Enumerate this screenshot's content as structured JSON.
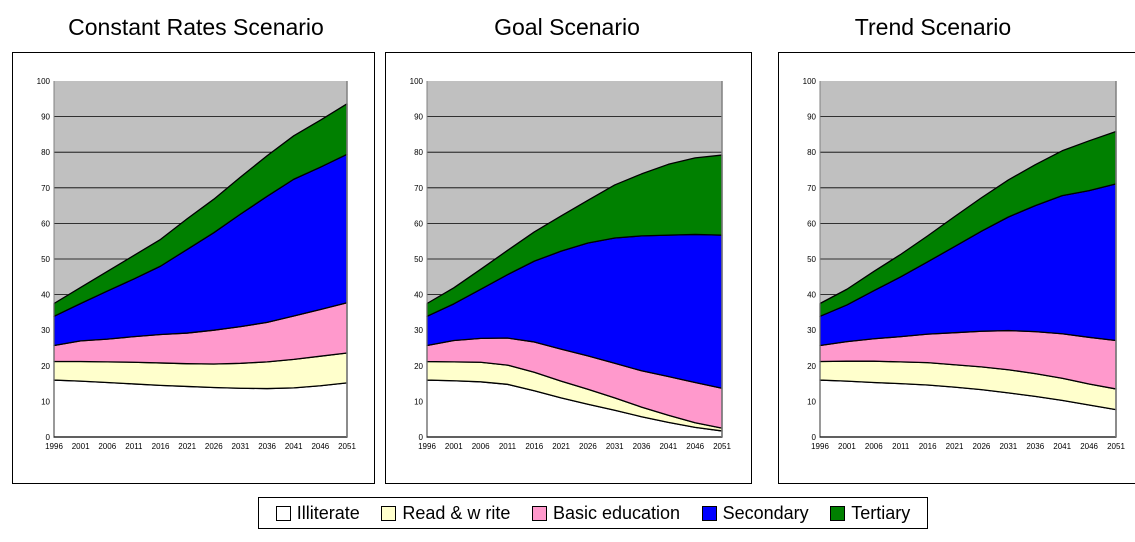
{
  "chart_data": [
    {
      "type": "area",
      "stacked": true,
      "title": "Constant Rates Scenario",
      "x": [
        1996,
        2001,
        2006,
        2011,
        2016,
        2021,
        2026,
        2031,
        2036,
        2041,
        2046,
        2051
      ],
      "ylim": [
        0,
        100
      ],
      "yticks": [
        0,
        10,
        20,
        30,
        40,
        50,
        60,
        70,
        80,
        90,
        100
      ],
      "grid": true,
      "series": [
        {
          "name": "Illiterate",
          "values": [
            16,
            15.7,
            15.3,
            14.9,
            14.5,
            14.2,
            13.9,
            13.7,
            13.6,
            13.8,
            14.4,
            15.2
          ]
        },
        {
          "name": "Read & w rite",
          "values": [
            5.2,
            5.5,
            5.8,
            6.1,
            6.3,
            6.4,
            6.6,
            7.0,
            7.5,
            8.0,
            8.3,
            8.4
          ]
        },
        {
          "name": "Basic education",
          "values": [
            4.5,
            5.8,
            6.4,
            7.2,
            8.0,
            8.6,
            9.5,
            10.3,
            11.1,
            12.2,
            13.1,
            14.1
          ]
        },
        {
          "name": "Secondary",
          "values": [
            8.2,
            10.5,
            13.5,
            16.2,
            19.2,
            23.5,
            27.4,
            31.6,
            35.4,
            38.4,
            40.0,
            41.7
          ]
        },
        {
          "name": "Tertiary",
          "values": [
            3.6,
            4.5,
            5.5,
            6.6,
            7.5,
            8.6,
            9.4,
            10.4,
            11.4,
            12.2,
            13.2,
            14.2
          ]
        }
      ]
    },
    {
      "type": "area",
      "stacked": true,
      "title": "Goal Scenario",
      "x": [
        1996,
        2001,
        2006,
        2011,
        2016,
        2021,
        2026,
        2031,
        2036,
        2041,
        2046,
        2051
      ],
      "ylim": [
        0,
        100
      ],
      "yticks": [
        0,
        10,
        20,
        30,
        40,
        50,
        60,
        70,
        80,
        90,
        100
      ],
      "grid": true,
      "series": [
        {
          "name": "Illiterate",
          "values": [
            16,
            15.8,
            15.5,
            14.8,
            13.0,
            11.0,
            9.2,
            7.5,
            5.7,
            4.1,
            2.7,
            1.7
          ]
        },
        {
          "name": "Read & w rite",
          "values": [
            5.2,
            5.3,
            5.5,
            5.4,
            5.2,
            4.7,
            4.2,
            3.5,
            2.7,
            2.0,
            1.3,
            0.8
          ]
        },
        {
          "name": "Basic education",
          "values": [
            4.5,
            6.0,
            6.7,
            7.6,
            8.5,
            9.0,
            9.4,
            9.7,
            10.2,
            10.9,
            11.3,
            11.2
          ]
        },
        {
          "name": "Secondary",
          "values": [
            8.2,
            10.3,
            13.8,
            17.8,
            22.7,
            27.5,
            31.7,
            35.2,
            37.9,
            39.7,
            41.6,
            43.0
          ]
        },
        {
          "name": "Tertiary",
          "values": [
            3.6,
            4.5,
            5.6,
            6.8,
            8.2,
            9.9,
            12.0,
            14.9,
            17.4,
            19.9,
            21.5,
            22.5
          ]
        }
      ]
    },
    {
      "type": "area",
      "stacked": true,
      "title": "Trend Scenario",
      "x": [
        1996,
        2001,
        2006,
        2011,
        2016,
        2021,
        2026,
        2031,
        2036,
        2041,
        2046,
        2051
      ],
      "ylim": [
        0,
        100
      ],
      "yticks": [
        0,
        10,
        20,
        30,
        40,
        50,
        60,
        70,
        80,
        90,
        100
      ],
      "grid": true,
      "series": [
        {
          "name": "Illiterate",
          "values": [
            16,
            15.7,
            15.3,
            15.0,
            14.6,
            14.0,
            13.3,
            12.4,
            11.4,
            10.3,
            9.0,
            7.7
          ]
        },
        {
          "name": "Read & w rite",
          "values": [
            5.2,
            5.6,
            6.0,
            6.1,
            6.3,
            6.3,
            6.4,
            6.5,
            6.4,
            6.2,
            5.9,
            5.8
          ]
        },
        {
          "name": "Basic education",
          "values": [
            4.5,
            5.5,
            6.3,
            7.1,
            8.0,
            9.0,
            10.0,
            11.0,
            11.8,
            12.5,
            13.1,
            13.6
          ]
        },
        {
          "name": "Secondary",
          "values": [
            8.2,
            10.3,
            13.5,
            16.8,
            20.3,
            24.2,
            28.1,
            31.9,
            35.4,
            38.8,
            41.2,
            44.0
          ]
        },
        {
          "name": "Tertiary",
          "values": [
            3.6,
            4.4,
            5.4,
            6.3,
            7.3,
            8.4,
            9.4,
            10.4,
            11.5,
            12.6,
            14.0,
            14.7
          ]
        }
      ]
    }
  ],
  "colors": {
    "Illiterate": "#ffffff",
    "Read & w rite": "#ffffcc",
    "Basic education": "#ff99cc",
    "Secondary": "#0000ff",
    "Tertiary": "#008000",
    "plot_background": "#c0c0c0"
  },
  "legend": [
    {
      "label": "Illiterate",
      "color": "#ffffff"
    },
    {
      "label": "Read & w rite",
      "color": "#ffffcc"
    },
    {
      "label": "Basic education",
      "color": "#ff99cc"
    },
    {
      "label": "Secondary",
      "color": "#0000ff"
    },
    {
      "label": "Tertiary",
      "color": "#008000"
    }
  ]
}
